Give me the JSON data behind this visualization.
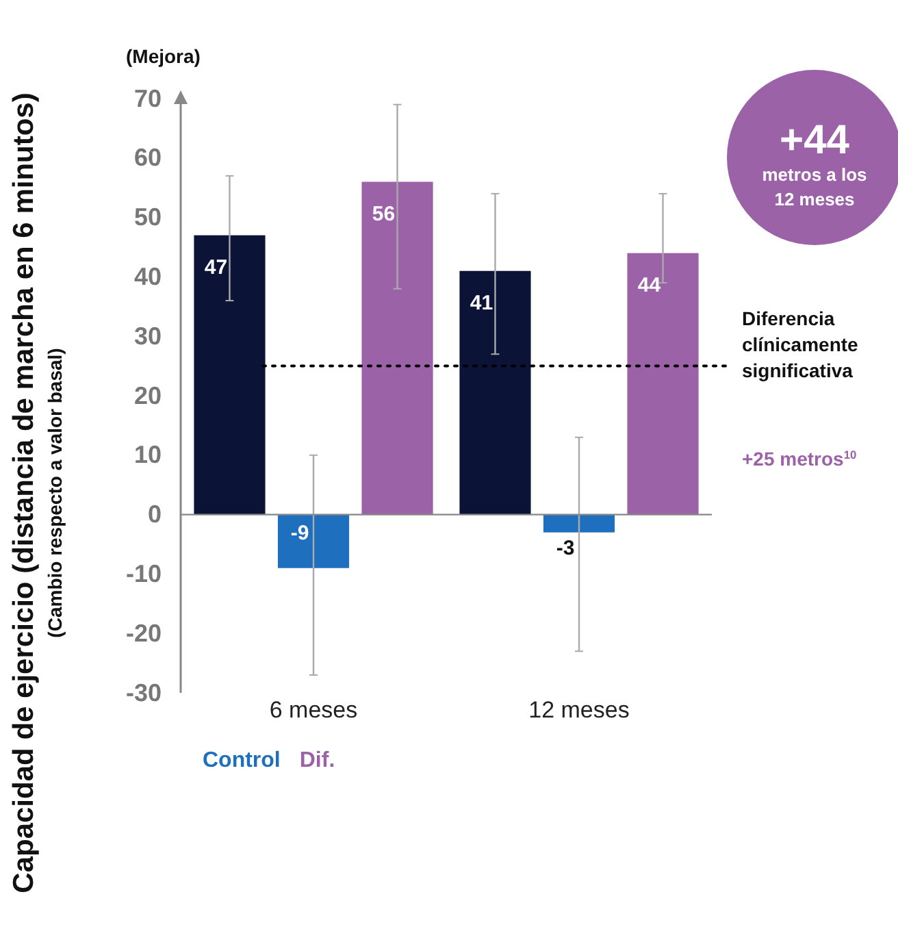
{
  "chart_data": {
    "type": "bar",
    "ylabel": "Capacidad de ejercicio (distancia de marcha en 6 minutos)",
    "categories": [
      "6 meses",
      "12 meses"
    ],
    "series": [
      {
        "color": "#0b1437",
        "values": [
          47,
          41
        ],
        "errors": [
          [
            36,
            57
          ],
          [
            27,
            54
          ]
        ]
      },
      {
        "name": "Control",
        "color": "#1f6fbf",
        "values": [
          -9,
          -3
        ],
        "errors": [
          [
            -27,
            10
          ],
          [
            -23,
            13
          ]
        ]
      },
      {
        "name": "Dif.",
        "color": "#9b62a8",
        "values": [
          56,
          44
        ],
        "errors": [
          [
            38,
            69
          ],
          [
            39,
            54
          ]
        ]
      }
    ],
    "ylim": [
      -30,
      70
    ],
    "yticks": [
      -30,
      -20,
      -10,
      0,
      10,
      20,
      30,
      40,
      50,
      60,
      70
    ],
    "legend": "bottom",
    "data_labels": true,
    "ref_lines": [
      {
        "axis": "y",
        "value": 25,
        "label": "Diferencia clínicamente significativa",
        "line_style": "dotted",
        "color": "#000000"
      }
    ],
    "annotations": [
      "(Cambio respecto a valor basal)",
      "(Mejora)",
      "+25 metros$^{10}$",
      "+44",
      "metros a los 12 meses"
    ]
  }
}
